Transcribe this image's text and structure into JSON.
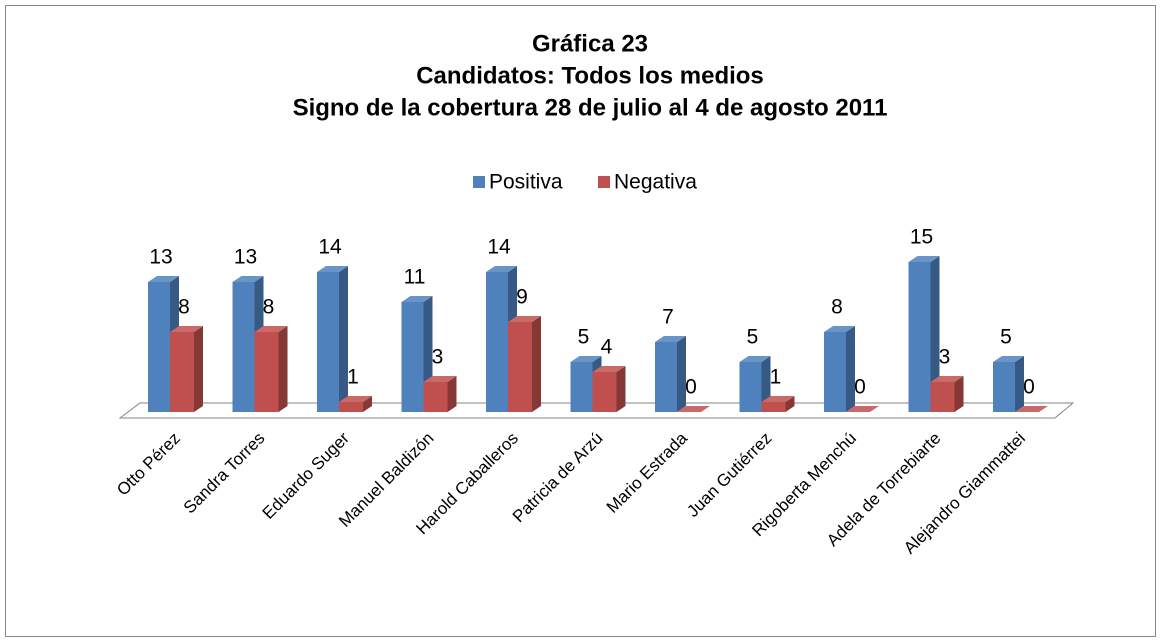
{
  "chart_data": {
    "type": "bar3d",
    "title": [
      "Gráfica 23",
      "Candidatos: Todos los medios",
      "Signo de la cobertura 28 de julio al 4 de agosto 2011"
    ],
    "categories": [
      "Otto Pérez",
      "Sandra Torres",
      "Eduardo Suger",
      "Manuel Baldizón",
      "Harold Caballeros",
      "Patricia de Arzú",
      "Mario Estrada",
      "Juan Gutiérrez",
      "Rigoberta Menchú",
      "Adela de Torrebiarte",
      "Alejandro Giammattei"
    ],
    "series": [
      {
        "name": "Positiva",
        "color": "#4f81bd",
        "values": [
          13,
          13,
          14,
          11,
          14,
          5,
          7,
          5,
          8,
          15,
          5
        ]
      },
      {
        "name": "Negativa",
        "color": "#c0504d",
        "values": [
          8,
          8,
          1,
          3,
          9,
          4,
          0,
          1,
          0,
          3,
          0
        ]
      }
    ],
    "legend": "top"
  }
}
